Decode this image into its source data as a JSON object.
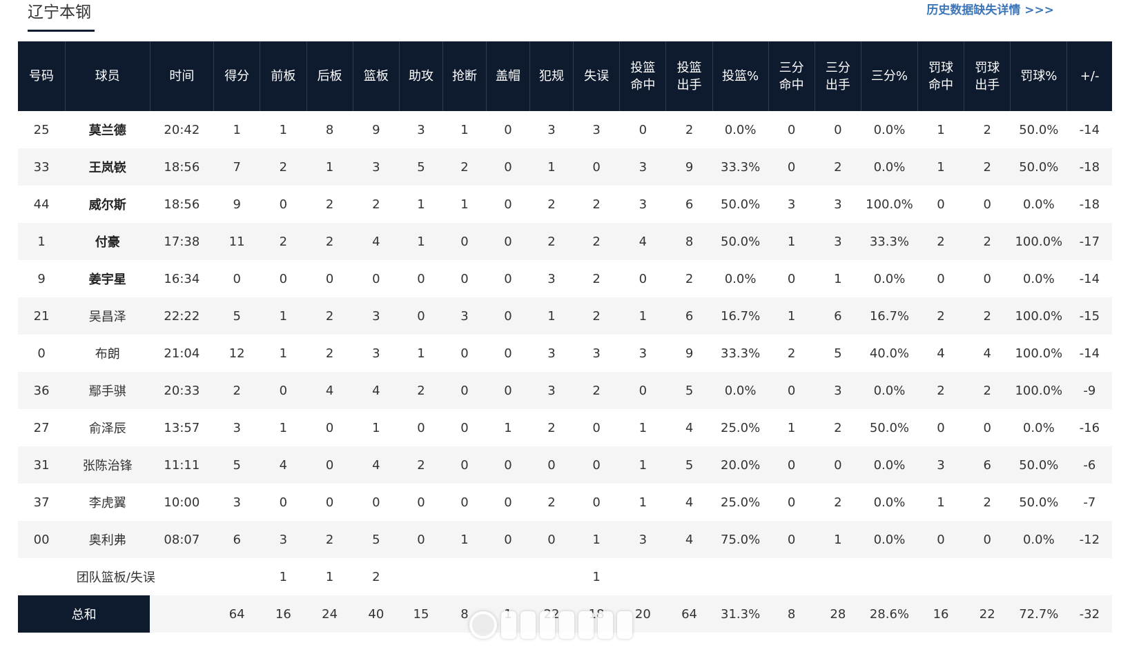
{
  "team": {
    "name": "辽宁本钢"
  },
  "history_link": "历史数据缺失详情 >>>",
  "columns": [
    "号码",
    "球员",
    "时间",
    "得分",
    "前板",
    "后板",
    "篮板",
    "助攻",
    "抢断",
    "盖帽",
    "犯规",
    "失误",
    "投篮\n命中",
    "投篮\n出手",
    "投篮%",
    "三分\n命中",
    "三分\n出手",
    "三分%",
    "罚球\n命中",
    "罚球\n出手",
    "罚球%",
    "+/-"
  ],
  "players": [
    {
      "num": "25",
      "name": "莫兰德",
      "starter": true,
      "time": "20:42",
      "stats": [
        "1",
        "1",
        "8",
        "9",
        "3",
        "1",
        "0",
        "3",
        "3",
        "0",
        "2",
        "0.0%",
        "0",
        "0",
        "0.0%",
        "1",
        "2",
        "50.0%",
        "-14"
      ]
    },
    {
      "num": "33",
      "name": "王岚嵚",
      "starter": true,
      "time": "18:56",
      "stats": [
        "7",
        "2",
        "1",
        "3",
        "5",
        "2",
        "0",
        "1",
        "0",
        "3",
        "9",
        "33.3%",
        "0",
        "2",
        "0.0%",
        "1",
        "2",
        "50.0%",
        "-18"
      ]
    },
    {
      "num": "44",
      "name": "威尔斯",
      "starter": true,
      "time": "18:56",
      "stats": [
        "9",
        "0",
        "2",
        "2",
        "1",
        "1",
        "0",
        "2",
        "2",
        "3",
        "6",
        "50.0%",
        "3",
        "3",
        "100.0%",
        "0",
        "0",
        "0.0%",
        "-18"
      ]
    },
    {
      "num": "1",
      "name": "付豪",
      "starter": true,
      "time": "17:38",
      "stats": [
        "11",
        "2",
        "2",
        "4",
        "1",
        "0",
        "0",
        "2",
        "2",
        "4",
        "8",
        "50.0%",
        "1",
        "3",
        "33.3%",
        "2",
        "2",
        "100.0%",
        "-17"
      ]
    },
    {
      "num": "9",
      "name": "姜宇星",
      "starter": true,
      "time": "16:34",
      "stats": [
        "0",
        "0",
        "0",
        "0",
        "0",
        "0",
        "0",
        "3",
        "2",
        "0",
        "2",
        "0.0%",
        "0",
        "1",
        "0.0%",
        "0",
        "0",
        "0.0%",
        "-14"
      ]
    },
    {
      "num": "21",
      "name": "吴昌泽",
      "starter": false,
      "time": "22:22",
      "stats": [
        "5",
        "1",
        "2",
        "3",
        "0",
        "3",
        "0",
        "1",
        "2",
        "1",
        "6",
        "16.7%",
        "1",
        "6",
        "16.7%",
        "2",
        "2",
        "100.0%",
        "-15"
      ]
    },
    {
      "num": "0",
      "name": "布朗",
      "starter": false,
      "time": "21:04",
      "stats": [
        "12",
        "1",
        "2",
        "3",
        "1",
        "0",
        "0",
        "3",
        "3",
        "3",
        "9",
        "33.3%",
        "2",
        "5",
        "40.0%",
        "4",
        "4",
        "100.0%",
        "-14"
      ]
    },
    {
      "num": "36",
      "name": "鄢手骐",
      "starter": false,
      "time": "20:33",
      "stats": [
        "2",
        "0",
        "4",
        "4",
        "2",
        "0",
        "0",
        "3",
        "2",
        "0",
        "5",
        "0.0%",
        "0",
        "3",
        "0.0%",
        "2",
        "2",
        "100.0%",
        "-9"
      ]
    },
    {
      "num": "27",
      "name": "俞泽辰",
      "starter": false,
      "time": "13:57",
      "stats": [
        "3",
        "1",
        "0",
        "1",
        "0",
        "0",
        "1",
        "2",
        "0",
        "1",
        "4",
        "25.0%",
        "1",
        "2",
        "50.0%",
        "0",
        "0",
        "0.0%",
        "-16"
      ]
    },
    {
      "num": "31",
      "name": "张陈治锋",
      "starter": false,
      "time": "11:11",
      "stats": [
        "5",
        "4",
        "0",
        "4",
        "2",
        "0",
        "0",
        "0",
        "0",
        "1",
        "5",
        "20.0%",
        "0",
        "0",
        "0.0%",
        "3",
        "6",
        "50.0%",
        "-6"
      ]
    },
    {
      "num": "37",
      "name": "李虎翼",
      "starter": false,
      "time": "10:00",
      "stats": [
        "3",
        "0",
        "0",
        "0",
        "0",
        "0",
        "0",
        "2",
        "0",
        "1",
        "4",
        "25.0%",
        "0",
        "2",
        "0.0%",
        "1",
        "2",
        "50.0%",
        "-7"
      ]
    },
    {
      "num": "00",
      "name": "奥利弗",
      "starter": false,
      "time": "08:07",
      "stats": [
        "6",
        "3",
        "2",
        "5",
        "0",
        "1",
        "0",
        "0",
        "1",
        "3",
        "4",
        "75.0%",
        "0",
        "1",
        "0.0%",
        "0",
        "0",
        "0.0%",
        "-12"
      ]
    }
  ],
  "team_row": {
    "label": "团队篮板/失误",
    "stats": [
      "",
      "1",
      "1",
      "2",
      "",
      "",
      "",
      "",
      "1",
      "",
      "",
      "",
      "",
      "",
      "",
      "",
      "",
      "",
      ""
    ]
  },
  "total_row": {
    "label": "总和",
    "stats": [
      "64",
      "16",
      "24",
      "40",
      "15",
      "8",
      "1",
      "22",
      "18",
      "20",
      "64",
      "31.3%",
      "8",
      "28",
      "28.6%",
      "16",
      "22",
      "72.7%",
      "-32"
    ]
  },
  "colors": {
    "header_bg": "#0e1b2e",
    "link": "#3d76b8",
    "stripe": "#f5f5f5"
  }
}
